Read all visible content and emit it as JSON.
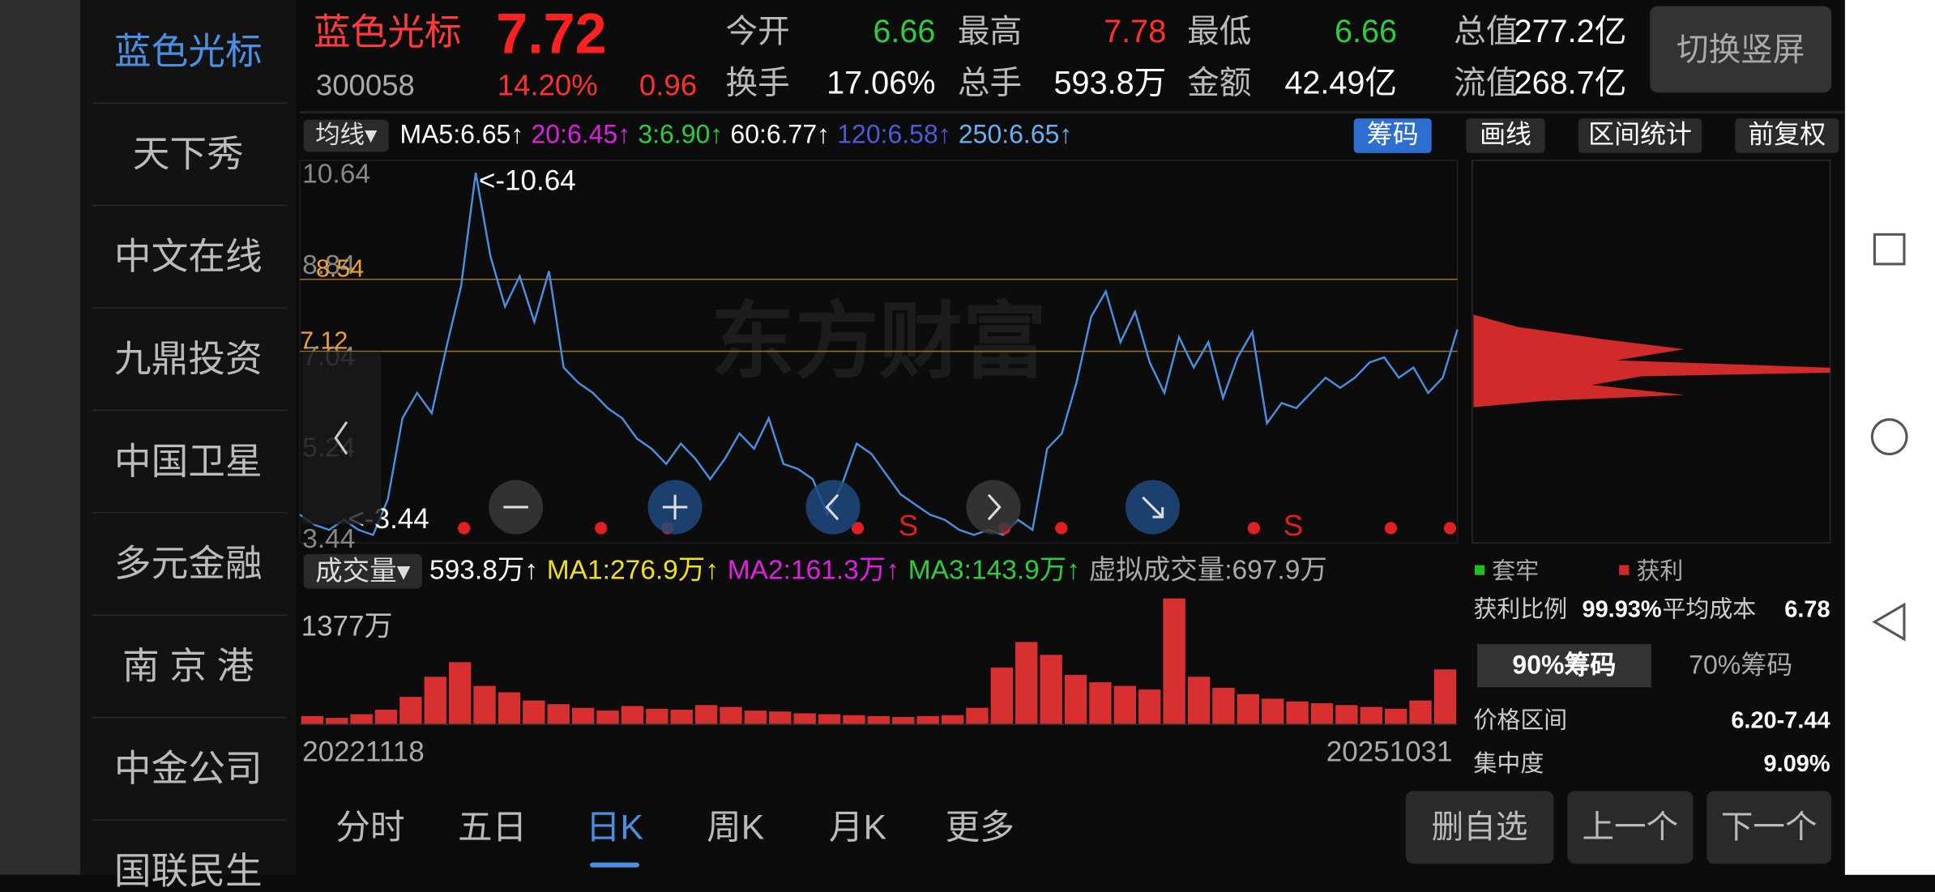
{
  "sidebar": [
    "蓝色光标",
    "天下秀",
    "中文在线",
    "九鼎投资",
    "中国卫星",
    "多元金融",
    "南 京 港",
    "中金公司",
    "国联民生"
  ],
  "header": {
    "name": "蓝色光标",
    "price": "7.72",
    "code": "300058",
    "change_pct": "14.20%",
    "change": "0.96",
    "toggle": "切换竖屏",
    "stats": [
      {
        "label": "今开",
        "value": "6.66",
        "color": "#2ecc40"
      },
      {
        "label": "最高",
        "value": "7.78",
        "color": "#ff3030"
      },
      {
        "label": "最低",
        "value": "6.66",
        "color": "#2ecc40"
      },
      {
        "label": "总值",
        "value": "277.2亿",
        "color": "#ffffff"
      },
      {
        "label": "换手",
        "value": "17.06%",
        "color": "#ffffff"
      },
      {
        "label": "总手",
        "value": "593.8万",
        "color": "#ffffff"
      },
      {
        "label": "金额",
        "value": "42.49亿",
        "color": "#ffffff"
      },
      {
        "label": "流值",
        "value": "268.7亿",
        "color": "#ffffff"
      }
    ]
  },
  "ma_bar": {
    "selector": "均线▾",
    "items": [
      {
        "text": "MA5:6.65↑",
        "color": "#ffffff"
      },
      {
        "text": "20:6.45↑",
        "color": "#e020e0"
      },
      {
        "text": "3:6.90↑",
        "color": "#2ecc40"
      },
      {
        "text": "60:6.77↑",
        "color": "#ffffff"
      },
      {
        "text": "120:6.58↑",
        "color": "#4a5ad8"
      },
      {
        "text": "250:6.65↑",
        "color": "#6ab0f0"
      }
    ],
    "buttons": [
      "筹码",
      "画线",
      "区间统计",
      "前复权"
    ]
  },
  "price_chart": {
    "type": "line",
    "color": "#4a8fe0",
    "ylim": [
      3.44,
      10.64
    ],
    "yticks": [
      10.64,
      8.84,
      7.04,
      5.24,
      3.44
    ],
    "hlines": [
      {
        "value": 8.54,
        "label": "8.54"
      },
      {
        "value": 7.12,
        "label": "7.12"
      }
    ],
    "annotations": [
      "<-10.64",
      "<-3.44"
    ],
    "signals": [
      "S",
      "S"
    ],
    "watermark": "东方财富",
    "values": [
      3.9,
      3.7,
      3.6,
      3.8,
      3.6,
      3.5,
      4.2,
      5.8,
      6.3,
      5.9,
      7.2,
      8.4,
      10.64,
      9.0,
      8.0,
      8.6,
      7.7,
      8.7,
      6.8,
      6.5,
      6.3,
      6.0,
      5.8,
      5.4,
      5.2,
      4.9,
      5.3,
      5.0,
      4.6,
      5.0,
      5.5,
      5.2,
      5.8,
      4.9,
      4.8,
      4.6,
      3.9,
      4.5,
      5.3,
      5.1,
      4.7,
      4.3,
      4.1,
      3.9,
      3.8,
      3.6,
      3.5,
      3.6,
      3.5,
      3.8,
      3.6,
      5.2,
      5.5,
      6.5,
      7.8,
      8.3,
      7.3,
      7.9,
      6.9,
      6.3,
      7.4,
      6.8,
      7.3,
      6.2,
      7.0,
      7.5,
      5.7,
      6.1,
      6.0,
      6.3,
      6.6,
      6.4,
      6.6,
      6.9,
      7.0,
      6.6,
      6.8,
      6.3,
      6.6,
      7.55
    ]
  },
  "volume_bar": {
    "selector": "成交量▾",
    "items": [
      {
        "text": "593.8万↑",
        "color": "#ffffff"
      },
      {
        "text": "MA1:276.9万↑",
        "color": "#f0e020"
      },
      {
        "text": "MA2:161.3万↑",
        "color": "#e020e0"
      },
      {
        "text": "MA3:143.9万↑",
        "color": "#2ecc40"
      },
      {
        "text": "虚拟成交量:697.9万",
        "color": "#aaaaaa"
      }
    ]
  },
  "volume_chart": {
    "type": "bar",
    "color": "#d83030",
    "ylim": [
      0,
      1377
    ],
    "max_label": "1377万",
    "start_date": "20221118",
    "end_date": "20251031",
    "values": [
      90,
      70,
      110,
      160,
      300,
      520,
      680,
      420,
      350,
      260,
      220,
      180,
      150,
      200,
      170,
      160,
      210,
      190,
      150,
      140,
      120,
      110,
      100,
      90,
      80,
      90,
      100,
      180,
      620,
      900,
      760,
      540,
      460,
      420,
      380,
      1377,
      520,
      400,
      330,
      280,
      250,
      230,
      210,
      190,
      170,
      260,
      600
    ]
  },
  "chips": {
    "legend": [
      "套牢",
      "获利"
    ],
    "profit_label": "获利比例",
    "profit": "99.93%",
    "avg_label": "平均成本",
    "avg": "6.78",
    "tabs": [
      "90%筹码",
      "70%筹码"
    ],
    "range_label": "价格区间",
    "range": "6.20-7.44",
    "conc_label": "集中度",
    "conc": "9.09%"
  },
  "tabs": [
    "分时",
    "五日",
    "日K",
    "周K",
    "月K",
    "更多"
  ],
  "actions": [
    "删自选",
    "上一个",
    "下一个"
  ]
}
